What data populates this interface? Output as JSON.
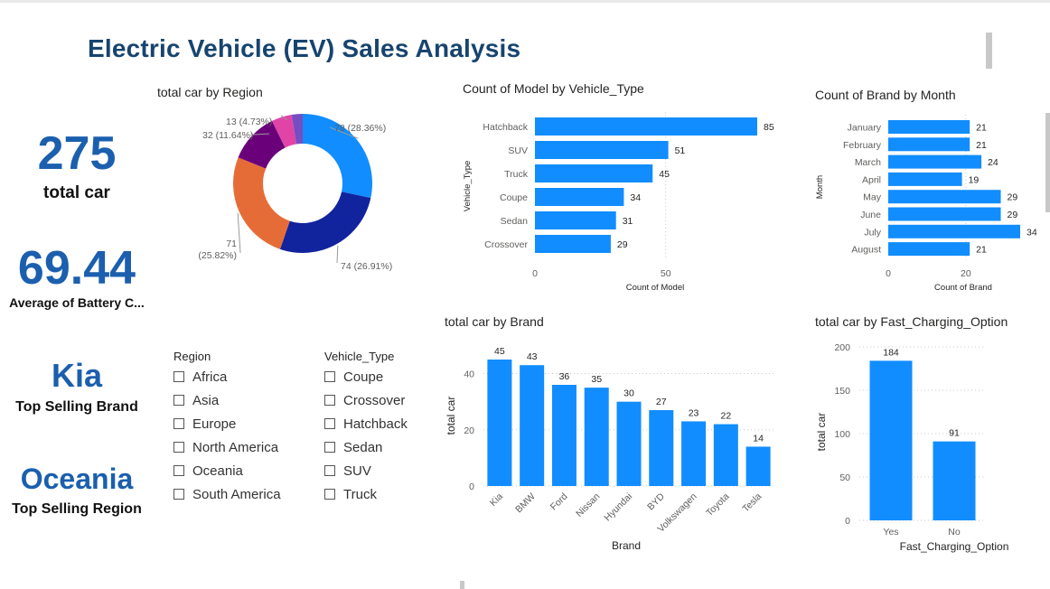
{
  "page": {
    "title": "Electric Vehicle (EV) Sales Analysis"
  },
  "kpis": {
    "total": {
      "value": "275",
      "label": "total car"
    },
    "battery": {
      "value": "69.44",
      "label": "Average of Battery C..."
    },
    "brand": {
      "value": "Kia",
      "label": "Top Selling Brand"
    },
    "region": {
      "value": "Oceania",
      "label": "Top Selling Region"
    }
  },
  "slicers": {
    "region": {
      "title": "Region",
      "items": [
        "Africa",
        "Asia",
        "Europe",
        "North America",
        "Oceania",
        "South America"
      ]
    },
    "vehicle_type": {
      "title": "Vehicle_Type",
      "items": [
        "Coupe",
        "Crossover",
        "Hatchback",
        "Sedan",
        "SUV",
        "Truck"
      ]
    }
  },
  "colors": {
    "bar": "#118dff",
    "title": "#17446f",
    "kpi": "#1b5fae"
  },
  "chart_data": [
    {
      "id": "region_donut",
      "type": "pie",
      "title": "total car by Region",
      "slices": [
        {
          "value": 78,
          "label": "78 (28.36%)",
          "color": "#118dff"
        },
        {
          "value": 74,
          "label": "74 (26.91%)",
          "color": "#12239e"
        },
        {
          "value": 71,
          "label": "71 (25.82%)",
          "color": "#e66c37"
        },
        {
          "value": 32,
          "label": "32 (11.64%)",
          "color": "#6b007b"
        },
        {
          "value": 13,
          "label": "13 (4.73%)",
          "color": "#e044a7"
        },
        {
          "value": 7,
          "label": "",
          "color": "#744ec2"
        }
      ]
    },
    {
      "id": "model_by_type",
      "type": "bar",
      "orientation": "horizontal",
      "title": "Count of Model by Vehicle_Type",
      "xlabel": "Count of Model",
      "ylabel": "Vehicle_Type",
      "categories": [
        "Hatchback",
        "SUV",
        "Truck",
        "Coupe",
        "Sedan",
        "Crossover"
      ],
      "values": [
        85,
        51,
        45,
        34,
        31,
        29
      ],
      "xlim": [
        0,
        85
      ],
      "xticks": [
        "0",
        "50"
      ],
      "xtick_values": [
        0,
        50
      ],
      "grid": true
    },
    {
      "id": "brand_by_month",
      "type": "bar",
      "orientation": "horizontal",
      "title": "Count of Brand by Month",
      "xlabel": "Count of Brand",
      "ylabel": "Month",
      "categories": [
        "January",
        "February",
        "March",
        "April",
        "May",
        "June",
        "July",
        "August"
      ],
      "values": [
        21,
        21,
        24,
        19,
        29,
        29,
        34,
        21
      ],
      "xlim": [
        0,
        34
      ],
      "xticks": [
        "0",
        "20"
      ],
      "xtick_values": [
        0,
        20
      ],
      "grid": true
    },
    {
      "id": "car_by_brand",
      "type": "bar",
      "orientation": "vertical",
      "title": "total car by Brand",
      "xlabel": "Brand",
      "ylabel": "total car",
      "categories": [
        "Kia",
        "BMW",
        "Ford",
        "Nissan",
        "Hyundai",
        "BYD",
        "Volkswagen",
        "Toyota",
        "Tesla"
      ],
      "values": [
        45,
        43,
        36,
        35,
        30,
        27,
        23,
        22,
        14
      ],
      "ylim": [
        0,
        45
      ],
      "yticks": [
        "0",
        "20",
        "40"
      ],
      "ytick_values": [
        0,
        20,
        40
      ],
      "grid": true
    },
    {
      "id": "car_by_charging",
      "type": "bar",
      "orientation": "vertical",
      "title": "total car by Fast_Charging_Option",
      "xlabel": "Fast_Charging_Option",
      "ylabel": "total car",
      "categories": [
        "Yes",
        "No"
      ],
      "values": [
        184,
        91
      ],
      "ylim": [
        0,
        200
      ],
      "yticks": [
        "0",
        "50",
        "100",
        "150",
        "200"
      ],
      "ytick_values": [
        0,
        50,
        100,
        150,
        200
      ],
      "grid": true
    }
  ]
}
